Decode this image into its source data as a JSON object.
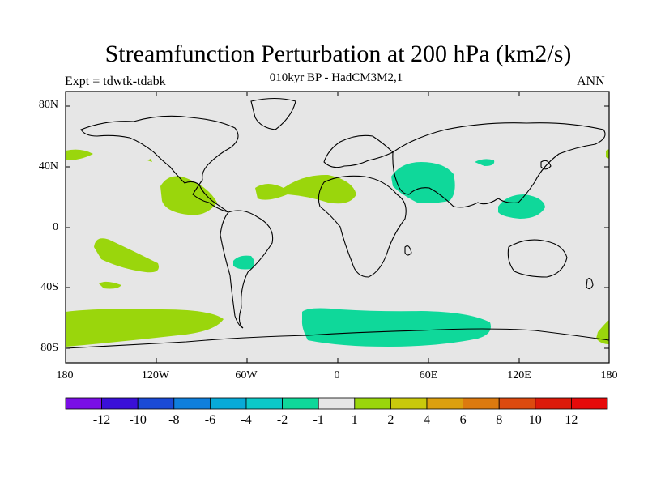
{
  "title": "Streamfunction Perturbation at 200 hPa (km2/s)",
  "subtitle": "010kyr BP - HadCM3M2,1",
  "left_label": "Expt = tdwtk-tdabk",
  "right_label": "ANN",
  "lat_labels": [
    "80N",
    "40N",
    "0",
    "40S",
    "80S"
  ],
  "lon_labels": [
    "180",
    "120W",
    "60W",
    "0",
    "60E",
    "120E",
    "180"
  ],
  "colorbar": {
    "labels": [
      "-12",
      "-10",
      "-8",
      "-6",
      "-4",
      "-2",
      "-1",
      "1",
      "2",
      "4",
      "6",
      "8",
      "10",
      "12"
    ],
    "colors": [
      "#7a0ee6",
      "#3a10d8",
      "#1a4ad6",
      "#0f7fdc",
      "#08aad8",
      "#0cc9c9",
      "#0fd89a",
      "#e6e6e6",
      "#9ad60c",
      "#c9c90c",
      "#dca00f",
      "#dc7a0f",
      "#dc4a0f",
      "#dc1a0a",
      "#e60a0a"
    ]
  },
  "colors": {
    "background_fill": "#e6e6e6",
    "positive_small": "#9ad60c",
    "negative_small": "#0fd89a",
    "coast": "#000000"
  }
}
